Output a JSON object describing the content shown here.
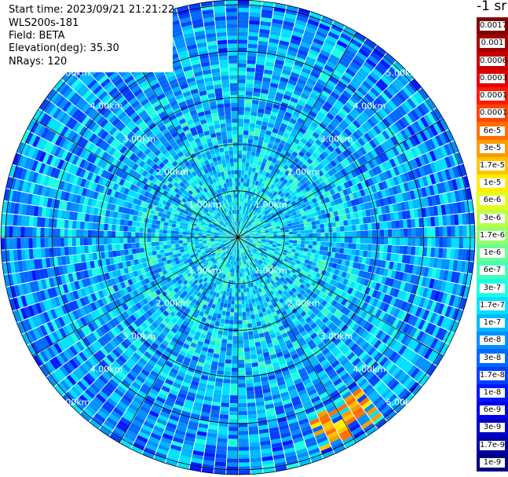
{
  "header": {
    "start_time": "Start time: 2023/09/21 21:21:22",
    "instrument": "WLS200s-181",
    "field": "Field: BETA",
    "elevation": "Elevation(deg): 35.30",
    "nrays": "NRays: 120"
  },
  "colorbar": {
    "unit": "-1 sr",
    "labels": [
      "0.0017",
      "0.001",
      "0.0006",
      "0.0003",
      "0.00017",
      "0.0001",
      "6e-5",
      "3e-5",
      "1.7e-5",
      "1e-5",
      "6e-6",
      "3e-6",
      "1.7e-6",
      "1e-6",
      "6e-7",
      "3e-7",
      "1.7e-7",
      "1e-7",
      "6e-8",
      "3e-8",
      "1.7e-8",
      "1e-8",
      "6e-9",
      "3e-9",
      "1.7e-9",
      "1e-9"
    ],
    "colors": [
      "#7f0000",
      "#a50000",
      "#c40000",
      "#e00000",
      "#ff1a00",
      "#ff4500",
      "#ff7000",
      "#ff9a00",
      "#ffc400",
      "#ffee00",
      "#e2ff1c",
      "#bbff44",
      "#93ff6b",
      "#6bff93",
      "#44ffbb",
      "#1cffe2",
      "#00e0ff",
      "#00b8ff",
      "#0090ff",
      "#0068ff",
      "#0040ff",
      "#0018ff",
      "#0000e8",
      "#0000c4",
      "#0000a0",
      "#00007f"
    ]
  },
  "chart_data": {
    "type": "heatmap",
    "projection": "polar-ppi",
    "field": "BETA",
    "nrays": 120,
    "range_rings_km": [
      1,
      2,
      3,
      4,
      5
    ],
    "ring_labels": [
      "1.00km",
      "2.00km",
      "3.00km",
      "4.00km",
      "5.00km"
    ],
    "max_range_km": 5.1,
    "azimuth_spokes_deg": [
      0,
      30,
      60,
      90,
      120,
      150,
      180,
      210,
      240,
      270,
      300,
      330
    ],
    "color_scale": "log",
    "value_range": [
      1e-09,
      0.0017
    ],
    "typical_value_near_range": 2e-07,
    "typical_value_far_range": 5e-08,
    "high_signal_feature": {
      "description_value_range": [
        1e-05,
        6e-05
      ],
      "azimuth_deg_range": [
        140,
        160
      ],
      "range_km": [
        4.2,
        4.9
      ]
    }
  }
}
